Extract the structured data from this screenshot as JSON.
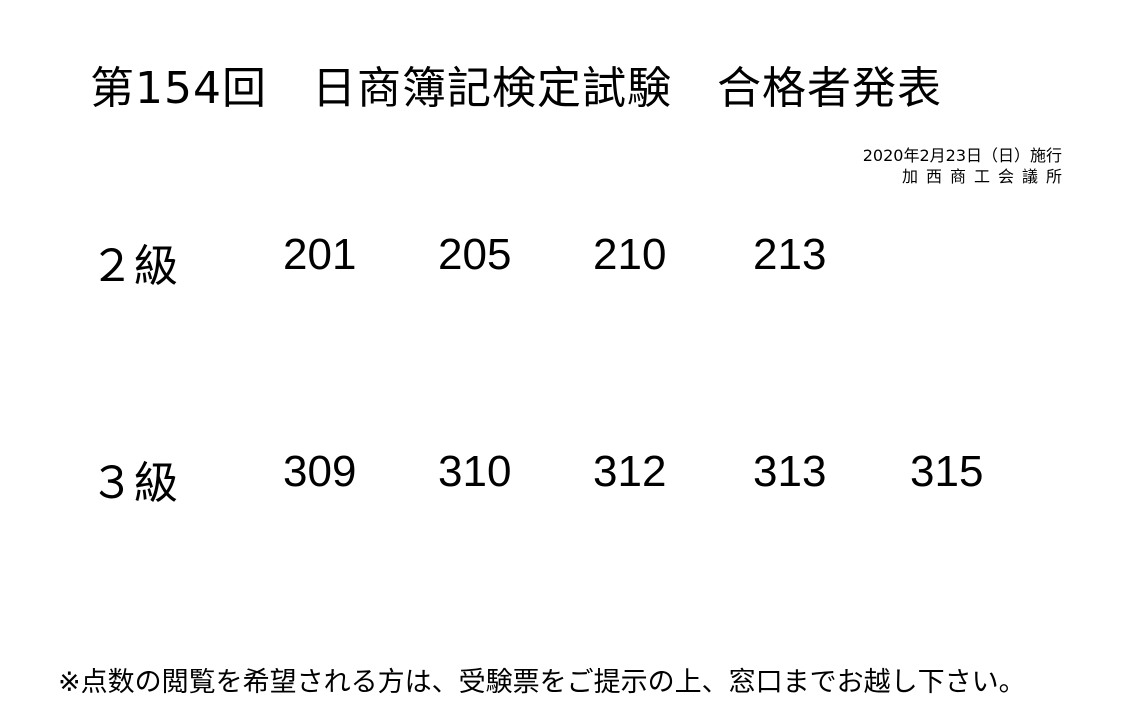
{
  "title": "第154回　日商簿記検定試験　合格者発表",
  "date": "2020年2月23日（日）施行",
  "organizer": "加西商工会議所",
  "grades": [
    {
      "label": "２級",
      "numbers": [
        "201",
        "205",
        "210",
        "213"
      ]
    },
    {
      "label": "３級",
      "numbers": [
        "309",
        "310",
        "312",
        "313",
        "315"
      ]
    }
  ],
  "note": "※点数の閲覧を希望される方は、受験票をご提示の上、窓口までお越し下さい。"
}
